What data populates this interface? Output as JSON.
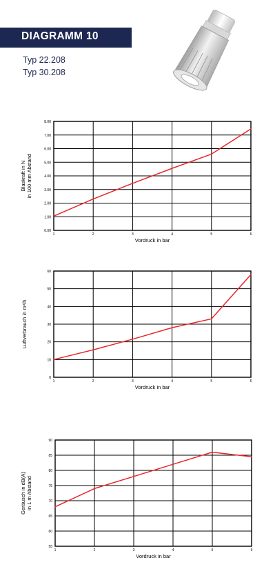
{
  "header": {
    "title": "DIAGRAMM 10",
    "types": [
      "Typ 22.208",
      "Typ 30.208"
    ]
  },
  "colors": {
    "header_band": "#1c2752",
    "line": "#e8262a",
    "grid": "#000000"
  },
  "product_icon": "nozzle-product-image",
  "chart_data": [
    {
      "type": "line",
      "x": [
        1,
        2,
        3,
        4,
        5,
        6
      ],
      "series": [
        {
          "values": [
            1.05,
            2.3,
            3.45,
            4.55,
            5.6,
            7.45
          ]
        }
      ],
      "xlabel": "Vordruck in bar",
      "ylabel_lines": [
        "Blaskraft in N",
        "in 100 mm Abstand"
      ],
      "xlim": [
        1,
        6
      ],
      "ylim": [
        0,
        8
      ],
      "yticks": [
        "0.00",
        "1.00",
        "2.00",
        "3.00",
        "4.00",
        "5.00",
        "6.00",
        "7.00",
        "8.00"
      ],
      "xticks": [
        "1",
        "2",
        "3",
        "4",
        "5",
        "6"
      ],
      "grid": true
    },
    {
      "type": "line",
      "x": [
        1,
        2,
        3,
        4,
        5,
        6
      ],
      "series": [
        {
          "values": [
            10,
            15.5,
            21.5,
            28,
            33,
            58
          ]
        }
      ],
      "xlabel": "Vordruck in bar",
      "ylabel_lines": [
        "Luftverbrauch in m³/h"
      ],
      "xlim": [
        1,
        6
      ],
      "ylim": [
        0,
        60
      ],
      "yticks": [
        "0",
        "10",
        "20",
        "30",
        "40",
        "50",
        "60"
      ],
      "xticks": [
        "1",
        "2",
        "3",
        "4",
        "5",
        "6"
      ],
      "grid": true
    },
    {
      "type": "line",
      "x": [
        1,
        2,
        3,
        4,
        5,
        6
      ],
      "series": [
        {
          "values": [
            68,
            74,
            78,
            82,
            86,
            84.5
          ]
        }
      ],
      "xlabel": "Vordruck in bar",
      "ylabel_lines": [
        "Geräusch in dB(A)",
        "in 1 m Abstand"
      ],
      "xlim": [
        1,
        6
      ],
      "ylim": [
        55,
        90
      ],
      "yticks": [
        "55",
        "60",
        "65",
        "70",
        "75",
        "80",
        "85",
        "90"
      ],
      "xticks": [
        "1",
        "2",
        "3",
        "4",
        "5",
        "6"
      ],
      "grid": true
    }
  ]
}
